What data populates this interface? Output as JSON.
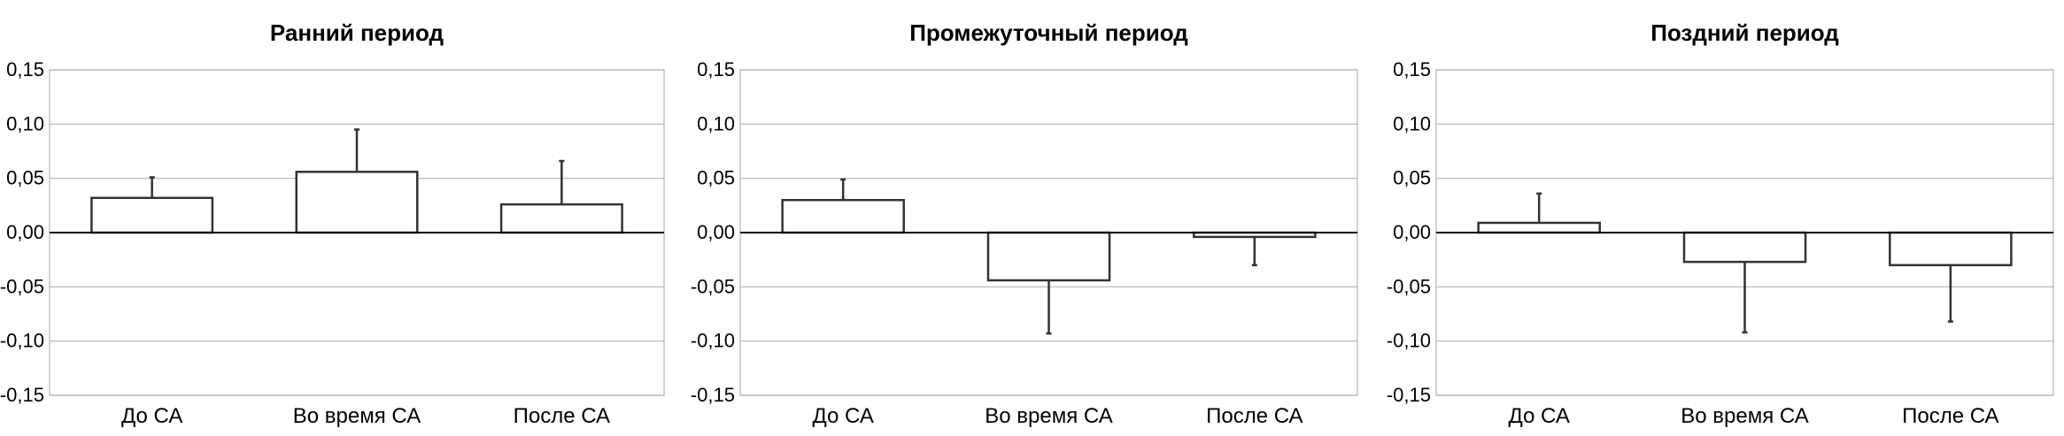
{
  "chart_data": [
    {
      "type": "bar",
      "title": "Ранний период",
      "categories": [
        "До СА",
        "Во время СА",
        "После СА"
      ],
      "values": [
        0.032,
        0.056,
        0.026
      ],
      "error_bars": [
        0.019,
        0.039,
        0.04
      ],
      "ylim": [
        -0.15,
        0.15
      ],
      "yticks": [
        "0,15",
        "0,10",
        "0,05",
        "0,00",
        "-0,05",
        "-0,10",
        "-0,15"
      ],
      "grid": true,
      "xlabel": "",
      "ylabel": ""
    },
    {
      "type": "bar",
      "title": "Промежуточный период",
      "categories": [
        "До СА",
        "Во время СА",
        "После СА"
      ],
      "values": [
        0.03,
        -0.044,
        -0.004
      ],
      "error_bars": [
        0.019,
        0.049,
        0.026
      ],
      "ylim": [
        -0.15,
        0.15
      ],
      "yticks": [
        "0,15",
        "0,10",
        "0,05",
        "0,00",
        "-0,05",
        "-0,10",
        "-0,15"
      ],
      "grid": true,
      "xlabel": "",
      "ylabel": ""
    },
    {
      "type": "bar",
      "title": "Поздний период",
      "categories": [
        "До СА",
        "Во время СА",
        "После СА"
      ],
      "values": [
        0.009,
        -0.027,
        -0.03
      ],
      "error_bars": [
        0.027,
        0.065,
        0.052
      ],
      "ylim": [
        -0.15,
        0.15
      ],
      "yticks": [
        "0,15",
        "0,10",
        "0,05",
        "0,00",
        "-0,05",
        "-0,10",
        "-0,15"
      ],
      "grid": true,
      "xlabel": "",
      "ylabel": ""
    }
  ],
  "colors": {
    "bar_fill": "#ffffff",
    "bar_stroke": "#333333",
    "grid": "#b3b3b3",
    "zero_line": "#000000",
    "text": "#000000"
  }
}
